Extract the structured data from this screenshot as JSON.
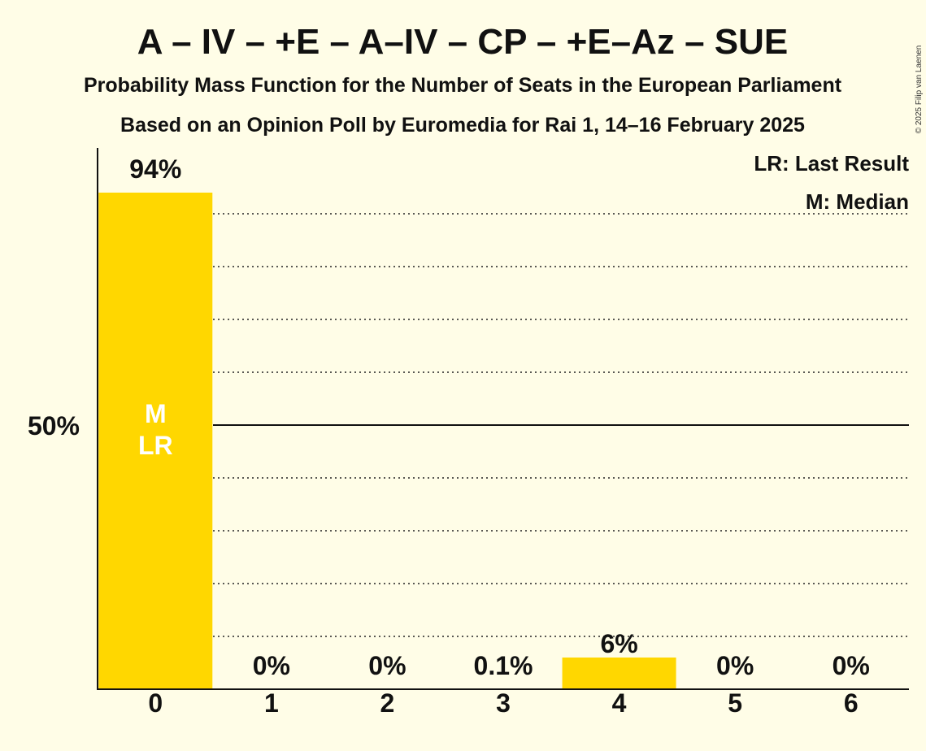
{
  "chart_data": {
    "type": "bar",
    "title": "A – IV – +E – A–IV – CP – +E–Az – SUE",
    "subtitle": "Probability Mass Function for the Number of Seats in the European Parliament",
    "subtitle2": "Based on an Opinion Poll by Euromedia for Rai 1, 14–16 February 2025",
    "categories": [
      "0",
      "1",
      "2",
      "3",
      "4",
      "5",
      "6"
    ],
    "values": [
      94,
      0,
      0,
      0.1,
      6,
      0,
      0
    ],
    "value_labels": [
      "94%",
      "0%",
      "0%",
      "0.1%",
      "6%",
      "0%",
      "0%"
    ],
    "ylim": [
      0,
      100
    ],
    "y_tick_value": 50,
    "y_tick_label": "50%",
    "gridlines": [
      10,
      20,
      30,
      40,
      60,
      70,
      80,
      90
    ],
    "median_index": 0,
    "last_result_index": 0,
    "bar_markers": [
      "M",
      "LR"
    ],
    "legend": [
      "LR: Last Result",
      "M: Median"
    ],
    "legend_position": "top-right",
    "bar_color": "#ffd700",
    "copyright": "© 2025 Filip van Laenen"
  }
}
